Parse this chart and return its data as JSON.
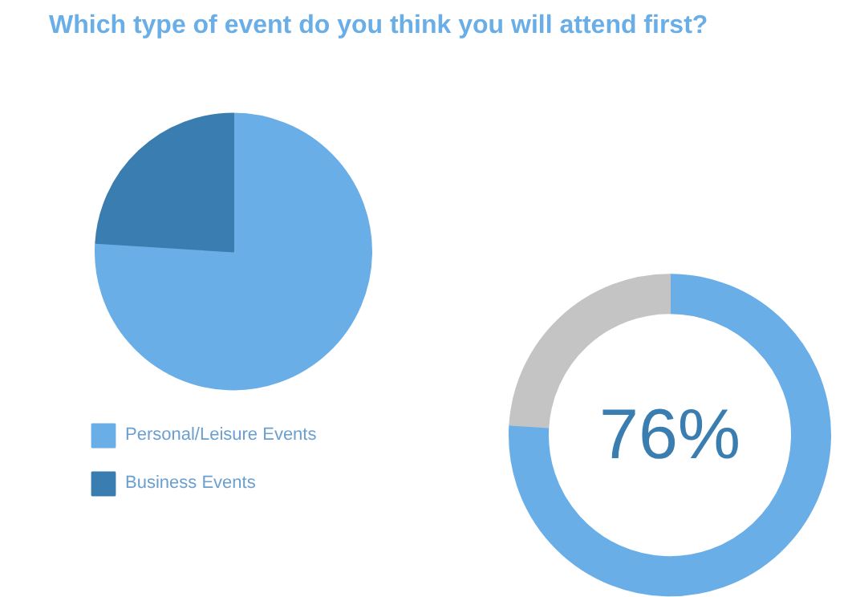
{
  "chart_data": [
    {
      "type": "pie",
      "title": "Which type of event do you think you will attend first?",
      "categories": [
        "Personal/Leisure Events",
        "Business Events"
      ],
      "values": [
        76,
        24
      ],
      "colors": [
        "#6aaee8",
        "#3a7db0"
      ],
      "legend": "bottom left"
    },
    {
      "type": "donut",
      "categories": [
        null,
        null
      ],
      "values": [
        76,
        24
      ],
      "colors": [
        "#6aaee8",
        "#c4c4c4"
      ],
      "value_labels": [
        "76%",
        null
      ]
    }
  ]
}
